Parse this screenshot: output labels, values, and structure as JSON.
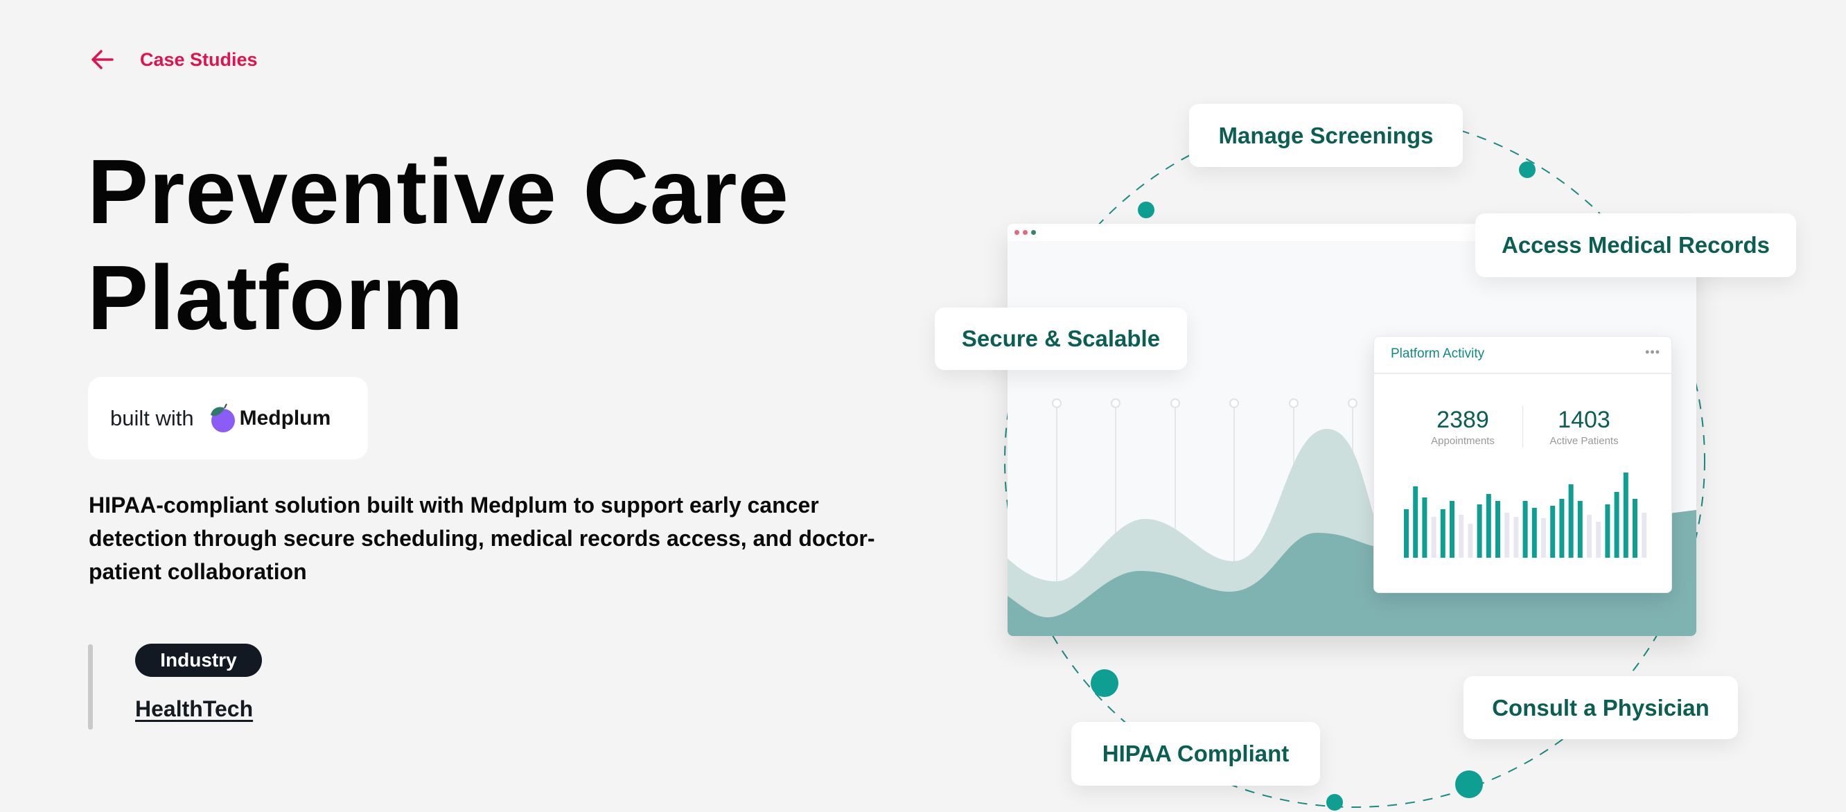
{
  "nav": {
    "back_label": "Case Studies",
    "back_icon": "arrow-left-icon",
    "accent": "#e0124f"
  },
  "hero": {
    "title_line1": "Preventive Care",
    "title_line2": "Platform",
    "built_with": "built with",
    "brand": "Medplum",
    "description": "HIPAA-compliant solution built with Medplum to support early cancer detection through secure scheduling, medical records access, and doctor-patient collaboration",
    "tag_label": "Industry",
    "industry": "HealthTech"
  },
  "illustration": {
    "features": {
      "manage": "Manage Screenings",
      "records": "Access Medical Records",
      "secure": "Secure & Scalable",
      "consult": "Consult a Physician",
      "hipaa": "HIPAA Compliant"
    },
    "card": {
      "title": "Platform Activity",
      "menu": "•••",
      "stats": [
        {
          "value": "2389",
          "label": "Appointments"
        },
        {
          "value": "1403",
          "label": "Active Patients"
        }
      ]
    },
    "colors": {
      "label_text": "#0b5e52",
      "teal": "#0e9e92",
      "wave_light": "#cddfdd",
      "wave_dark": "#7fb3b2",
      "bar_gray": "#e8e7f1"
    }
  }
}
